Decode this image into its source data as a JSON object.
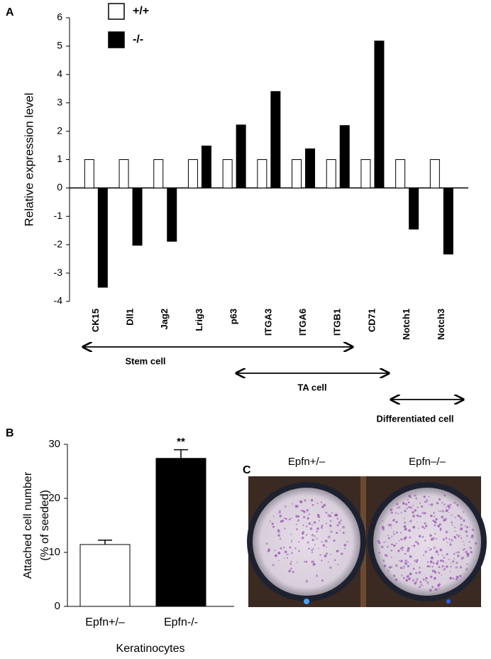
{
  "chart_data": [
    {
      "type": "bar",
      "panel_label": "A",
      "ylabel": "Relative expression level",
      "categories": [
        "CK15",
        "Dll1",
        "Jag2",
        "Lrig3",
        "p63",
        "ITGA3",
        "ITGA6",
        "ITGB1",
        "CD71",
        "Notch1",
        "Notch3"
      ],
      "series": [
        {
          "name": "+/+",
          "color": "#ffffff",
          "values": [
            1,
            1,
            1,
            1,
            1,
            1,
            1,
            1,
            1,
            1,
            1
          ]
        },
        {
          "name": "-/-",
          "color": "#000000",
          "values": [
            -3.5,
            -2.02,
            -1.88,
            1.48,
            2.22,
            3.4,
            1.38,
            2.2,
            5.18,
            -1.45,
            -2.33
          ]
        }
      ],
      "ylim": [
        -4,
        6
      ],
      "yticks": [
        -4,
        -3,
        -2,
        -1,
        0,
        1,
        2,
        3,
        4,
        5,
        6
      ],
      "groups": [
        "Stem cell",
        "TA cell",
        "Differentiated cell"
      ]
    },
    {
      "type": "bar",
      "panel_label": "B",
      "ylabel": [
        "Attached cell number",
        "(% of seeded)"
      ],
      "xlabel": "Keratinocytes",
      "categories": [
        "Epfn+/–",
        "Epfn-/-"
      ],
      "values": [
        11.45,
        27.4
      ],
      "errors": [
        0.8,
        1.6
      ],
      "colors": [
        "#ffffff",
        "#000000"
      ],
      "ylim": [
        0,
        30
      ],
      "yticks": [
        0,
        10,
        20,
        30
      ],
      "annotation": "**"
    }
  ],
  "panel_c": {
    "label": "C",
    "images": [
      "Epfn+/–",
      "Epfn–/–"
    ]
  }
}
